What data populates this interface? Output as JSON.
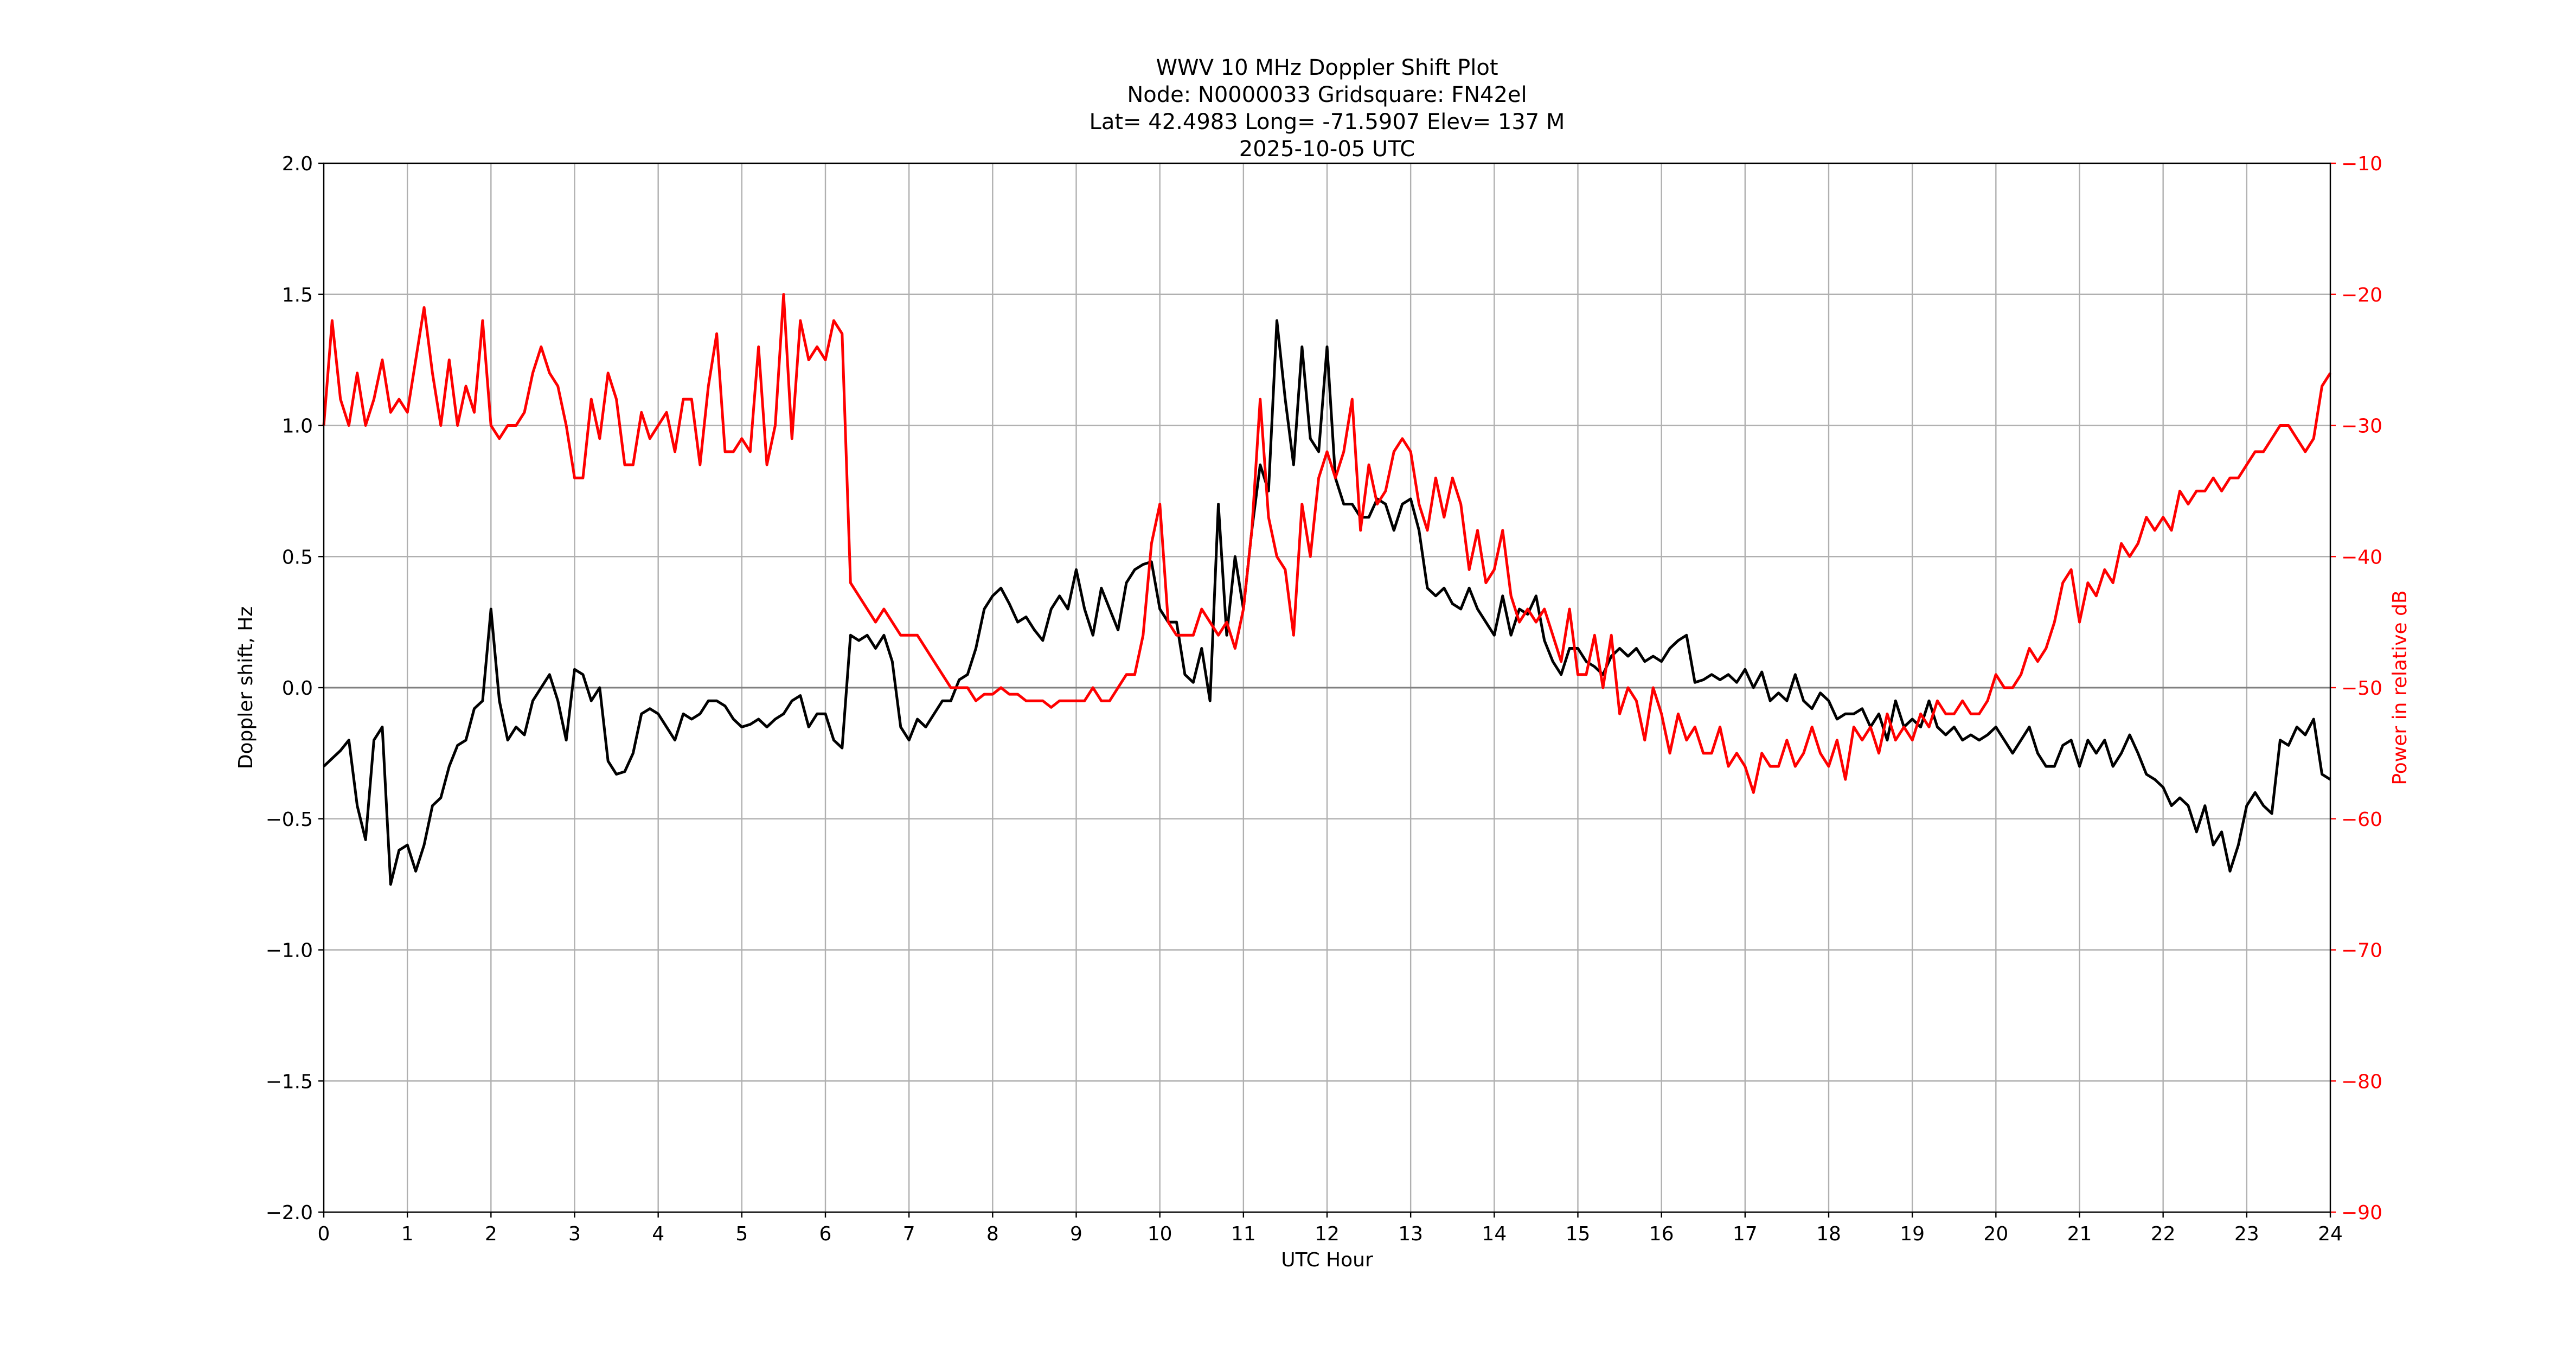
{
  "chart_data": {
    "type": "line",
    "title_lines": [
      "WWV 10 MHz Doppler Shift Plot",
      "Node:  N0000033     Gridsquare:  FN42el",
      "Lat= 42.4983    Long= -71.5907    Elev= 137 M",
      "2025-10-05  UTC"
    ],
    "xlabel": "UTC Hour",
    "ylabel": "Doppler shift, Hz",
    "y2label": "Power in relative dB",
    "xlim": [
      0,
      24
    ],
    "ylim": [
      -2.0,
      2.0
    ],
    "y2lim": [
      -90,
      -10
    ],
    "xticks": [
      "0",
      "1",
      "2",
      "3",
      "4",
      "5",
      "6",
      "7",
      "8",
      "9",
      "10",
      "11",
      "12",
      "13",
      "14",
      "15",
      "16",
      "17",
      "18",
      "19",
      "20",
      "21",
      "22",
      "23",
      "24"
    ],
    "yticks": [
      "−2.0",
      "−1.5",
      "−1.0",
      "−0.5",
      "0.0",
      "0.5",
      "1.0",
      "1.5",
      "2.0"
    ],
    "y2ticks": [
      "−90",
      "−80",
      "−70",
      "−60",
      "−50",
      "−40",
      "−30",
      "−20",
      "−10"
    ],
    "grid": true,
    "colors": {
      "doppler": "#000000",
      "power": "#ff0000",
      "grid": "#b0b0b0",
      "zero_line": "#808080"
    },
    "x_step_hours": 0.1,
    "series": [
      {
        "name": "Doppler shift, Hz",
        "axis": "left",
        "values": [
          -0.3,
          -0.27,
          -0.24,
          -0.2,
          -0.45,
          -0.58,
          -0.2,
          -0.15,
          -0.75,
          -0.62,
          -0.6,
          -0.7,
          -0.6,
          -0.45,
          -0.42,
          -0.3,
          -0.22,
          -0.2,
          -0.08,
          -0.05,
          0.3,
          -0.05,
          -0.2,
          -0.15,
          -0.18,
          -0.05,
          0.0,
          0.05,
          -0.05,
          -0.2,
          0.07,
          0.05,
          -0.05,
          0.0,
          -0.28,
          -0.33,
          -0.32,
          -0.25,
          -0.1,
          -0.08,
          -0.1,
          -0.15,
          -0.2,
          -0.1,
          -0.12,
          -0.1,
          -0.05,
          -0.05,
          -0.07,
          -0.12,
          -0.15,
          -0.14,
          -0.12,
          -0.15,
          -0.12,
          -0.1,
          -0.05,
          -0.03,
          -0.15,
          -0.1,
          -0.1,
          -0.2,
          -0.23,
          0.2,
          0.18,
          0.2,
          0.15,
          0.2,
          0.1,
          -0.15,
          -0.2,
          -0.12,
          -0.15,
          -0.1,
          -0.05,
          -0.05,
          0.03,
          0.05,
          0.15,
          0.3,
          0.35,
          0.38,
          0.32,
          0.25,
          0.27,
          0.22,
          0.18,
          0.3,
          0.35,
          0.3,
          0.45,
          0.3,
          0.2,
          0.38,
          0.3,
          0.22,
          0.4,
          0.45,
          0.47,
          0.48,
          0.3,
          0.25,
          0.25,
          0.05,
          0.02,
          0.15,
          -0.05,
          0.7,
          0.2,
          0.5,
          0.3,
          0.6,
          0.85,
          0.75,
          1.4,
          1.1,
          0.85,
          1.3,
          0.95,
          0.9,
          1.3,
          0.8,
          0.7,
          0.7,
          0.65,
          0.65,
          0.72,
          0.7,
          0.6,
          0.7,
          0.72,
          0.6,
          0.38,
          0.35,
          0.38,
          0.32,
          0.3,
          0.38,
          0.3,
          0.25,
          0.2,
          0.35,
          0.2,
          0.3,
          0.28,
          0.35,
          0.18,
          0.1,
          0.05,
          0.15,
          0.15,
          0.1,
          0.08,
          0.05,
          0.12,
          0.15,
          0.12,
          0.15,
          0.1,
          0.12,
          0.1,
          0.15,
          0.18,
          0.2,
          0.02,
          0.03,
          0.05,
          0.03,
          0.05,
          0.02,
          0.07,
          0.0,
          0.06,
          -0.05,
          -0.02,
          -0.05,
          0.05,
          -0.05,
          -0.08,
          -0.02,
          -0.05,
          -0.12,
          -0.1,
          -0.1,
          -0.08,
          -0.15,
          -0.1,
          -0.2,
          -0.05,
          -0.15,
          -0.12,
          -0.15,
          -0.05,
          -0.15,
          -0.18,
          -0.15,
          -0.2,
          -0.18,
          -0.2,
          -0.18,
          -0.15,
          -0.2,
          -0.25,
          -0.2,
          -0.15,
          -0.25,
          -0.3,
          -0.3,
          -0.22,
          -0.2,
          -0.3,
          -0.2,
          -0.25,
          -0.2,
          -0.3,
          -0.25,
          -0.18,
          -0.25,
          -0.33,
          -0.35,
          -0.38,
          -0.45,
          -0.42,
          -0.45,
          -0.55,
          -0.45,
          -0.6,
          -0.55,
          -0.7,
          -0.6,
          -0.45,
          -0.4,
          -0.45,
          -0.48,
          -0.2,
          -0.22,
          -0.15,
          -0.18,
          -0.12,
          -0.33,
          -0.35
        ]
      },
      {
        "name": "Power in relative dB",
        "axis": "right",
        "values": [
          -30,
          -22,
          -28,
          -30,
          -26,
          -30,
          -28,
          -25,
          -29,
          -28,
          -29,
          -25,
          -21,
          -26,
          -30,
          -25,
          -30,
          -27,
          -29,
          -22,
          -30,
          -31,
          -30,
          -30,
          -29,
          -26,
          -24,
          -26,
          -27,
          -30,
          -34,
          -34,
          -28,
          -31,
          -26,
          -28,
          -33,
          -33,
          -29,
          -31,
          -30,
          -29,
          -32,
          -28,
          -28,
          -33,
          -27,
          -23,
          -32,
          -32,
          -31,
          -32,
          -24,
          -33,
          -30,
          -20,
          -31,
          -22,
          -25,
          -24,
          -25,
          -22,
          -23,
          -42,
          -43,
          -44,
          -45,
          -44,
          -45,
          -46,
          -46,
          -46,
          -47,
          -48,
          -49,
          -50,
          -50,
          -50,
          -51,
          -50.5,
          -50.5,
          -50,
          -50.5,
          -50.5,
          -51,
          -51,
          -51,
          -51.5,
          -51,
          -51,
          -51,
          -51,
          -50,
          -51,
          -51,
          -50,
          -49,
          -49,
          -46,
          -39,
          -36,
          -45,
          -46,
          -46,
          -46,
          -44,
          -45,
          -46,
          -45,
          -47,
          -44,
          -38,
          -28,
          -37,
          -40,
          -41,
          -46,
          -36,
          -40,
          -34,
          -32,
          -34,
          -32,
          -28,
          -38,
          -33,
          -36,
          -35,
          -32,
          -31,
          -32,
          -36,
          -38,
          -34,
          -37,
          -34,
          -36,
          -41,
          -38,
          -42,
          -41,
          -38,
          -43,
          -45,
          -44,
          -45,
          -44,
          -46,
          -48,
          -44,
          -49,
          -49,
          -46,
          -50,
          -46,
          -52,
          -50,
          -51,
          -54,
          -50,
          -52,
          -55,
          -52,
          -54,
          -53,
          -55,
          -55,
          -53,
          -56,
          -55,
          -56,
          -58,
          -55,
          -56,
          -56,
          -54,
          -56,
          -55,
          -53,
          -55,
          -56,
          -54,
          -57,
          -53,
          -54,
          -53,
          -55,
          -52,
          -54,
          -53,
          -54,
          -52,
          -53,
          -51,
          -52,
          -52,
          -51,
          -52,
          -52,
          -51,
          -49,
          -50,
          -50,
          -49,
          -47,
          -48,
          -47,
          -45,
          -42,
          -41,
          -45,
          -42,
          -43,
          -41,
          -42,
          -39,
          -40,
          -39,
          -37,
          -38,
          -37,
          -38,
          -35,
          -36,
          -35,
          -35,
          -34,
          -35,
          -34,
          -34,
          -33,
          -32,
          -32,
          -31,
          -30,
          -30,
          -31,
          -32,
          -31,
          -27,
          -26
        ]
      }
    ]
  }
}
